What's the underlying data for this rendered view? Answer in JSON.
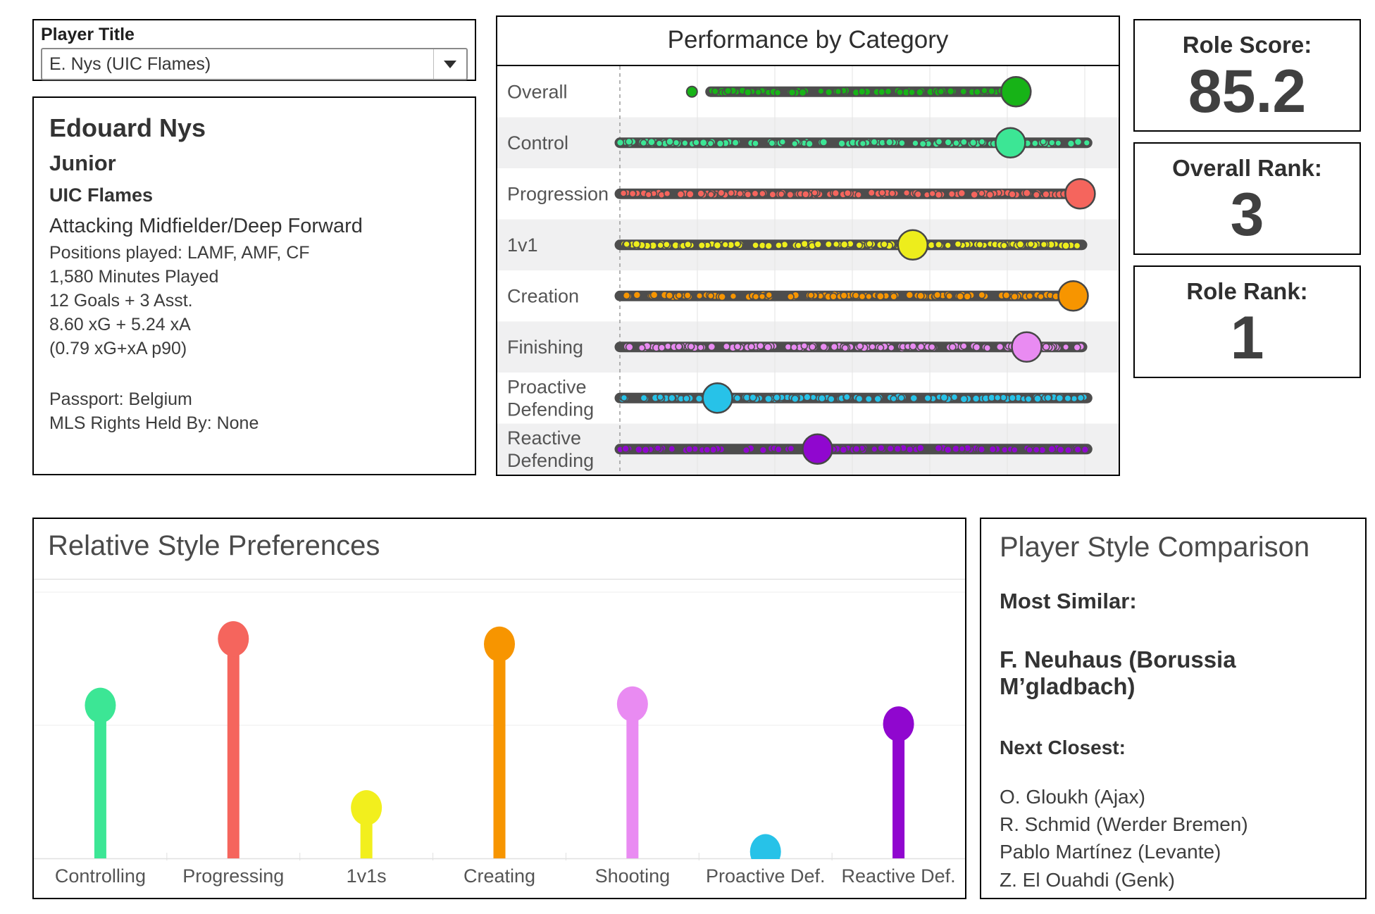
{
  "filter": {
    "label": "Player Title",
    "value": "E. Nys (UIC Flames)",
    "arrow_icon": "dropdown-arrow"
  },
  "player_card": {
    "name": "Edouard Nys",
    "class_year": "Junior",
    "team": "UIC Flames",
    "role": "Attacking Midfielder/Deep Forward",
    "lines": [
      "Positions played: LAMF, AMF, CF",
      "1,580 Minutes Played",
      "12 Goals + 3 Asst.",
      "8.60 xG + 5.24 xA",
      "(0.79 xG+xA p90)"
    ],
    "passport": "Passport: Belgium",
    "mls_rights": "MLS Rights Held By: None"
  },
  "stats_boxes": [
    {
      "label": "Role Score:",
      "value": "85.2"
    },
    {
      "label": "Overall Rank:",
      "value": "3"
    },
    {
      "label": "Role Rank:",
      "value": "1"
    }
  ],
  "chart_data": [
    {
      "type": "scatter",
      "style": "dot-strip-percentile",
      "title": "Performance by Category",
      "orientation": "horizontal",
      "categories": [
        "Overall",
        "Control",
        "Progression",
        "1v1",
        "Creation",
        "Finishing",
        "Proactive Defending",
        "Reactive Defending"
      ],
      "series": [
        {
          "name": "player_percentile",
          "values": [
            85.2,
            84,
            99,
            63,
            97.5,
            87.5,
            21,
            42.5
          ]
        }
      ],
      "distribution_ranges": [
        [
          19.5,
          85.2
        ],
        [
          0,
          100.5
        ],
        [
          0,
          99.4
        ],
        [
          0,
          99.4
        ],
        [
          0,
          98
        ],
        [
          0,
          99.4
        ],
        [
          0,
          100.5
        ],
        [
          0,
          100.5
        ]
      ],
      "outliers": [
        [
          15.5
        ],
        [],
        [],
        [],
        [],
        [],
        [],
        []
      ],
      "colors": [
        "#17b317",
        "#3ce695",
        "#f5655d",
        "#eded1c",
        "#f79500",
        "#e98bf2",
        "#27c2e8",
        "#9007cf"
      ],
      "strip_color": "#4d4d4d",
      "xlim": [
        0,
        100
      ],
      "reference_line_x": 0,
      "grid": true,
      "row_alt_shading": "#f0f0f1",
      "legend": "none"
    },
    {
      "type": "bar",
      "style": "lollipop",
      "title": "Relative Style Preferences",
      "categories": [
        "Controlling",
        "Progressing",
        "1v1s",
        "Creating",
        "Shooting",
        "Proactive Def.",
        "Reactive Def."
      ],
      "values": [
        1.15,
        1.65,
        0.38,
        1.61,
        1.16,
        0.05,
        1.01
      ],
      "colors": [
        "#3ce695",
        "#f5655d",
        "#f2ef1d",
        "#f79500",
        "#e98bf2",
        "#27c2e8",
        "#9007cf"
      ],
      "ylim": [
        0,
        2.1
      ],
      "gridlines_y": [
        1,
        2
      ],
      "grid": true,
      "legend": "none",
      "xlabel": "",
      "ylabel": ""
    }
  ],
  "comparison": {
    "title": "Player Style Comparison",
    "most_similar_label": "Most Similar:",
    "most_similar": "F. Neuhaus (Borussia M’gladbach)",
    "next_closest_label": "Next Closest:",
    "next_closest": [
      "O. Gloukh (Ajax)",
      "R. Schmid (Werder Bremen)",
      "Pablo Martínez (Levante)",
      "Z. El Ouahdi (Genk)"
    ]
  }
}
